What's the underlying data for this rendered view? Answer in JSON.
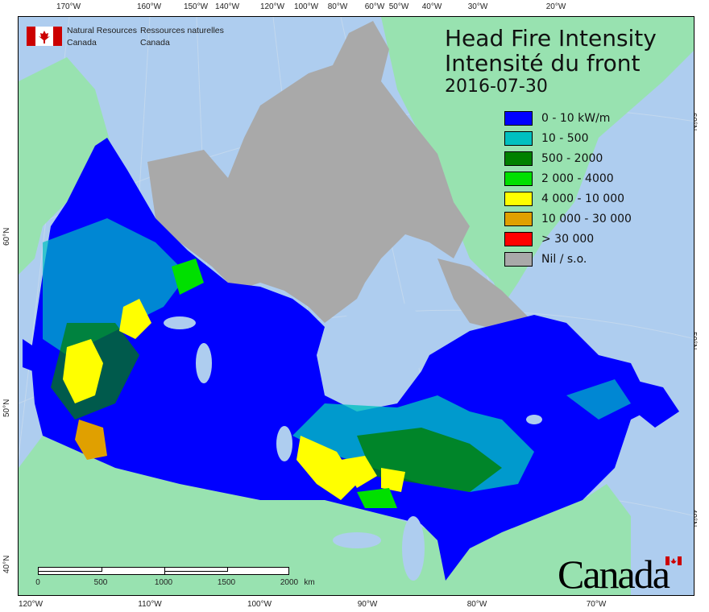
{
  "header": {
    "org_en_line1": "Natural Resources",
    "org_en_line2": "Canada",
    "org_fr_line1": "Ressources naturelles",
    "org_fr_line2": "Canada"
  },
  "title": {
    "line_en": "Head Fire Intensity",
    "line_fr": "Intensité du front",
    "date": "2016-07-30"
  },
  "legend": [
    {
      "label": "0 - 10 kW/m",
      "color": "#0000ff"
    },
    {
      "label": "10 - 500",
      "color": "#00c0c0"
    },
    {
      "label": "500 - 2000",
      "color": "#008000"
    },
    {
      "label": "2 000 - 4000",
      "color": "#00e000"
    },
    {
      "label": "4 000 - 10 000",
      "color": "#ffff00"
    },
    {
      "label": "10 000 - 30 000",
      "color": "#e0a000"
    },
    {
      "label": "> 30 000",
      "color": "#ff0000"
    },
    {
      "label": "Nil / s.o.",
      "color": "#a9a9a9"
    }
  ],
  "graticule": {
    "top": [
      "170°W",
      "160°W",
      "150°W",
      "140°W",
      "120°W",
      "100°W",
      "80°W",
      "60°W",
      "50°W",
      "40°W",
      "30°W",
      "20°W"
    ],
    "bottom": [
      "120°W",
      "110°W",
      "100°W",
      "90°W",
      "80°W",
      "70°W"
    ],
    "left": [
      "60°N",
      "50°N",
      "40°N"
    ],
    "right": [
      "60°N",
      "50°N",
      "40°N"
    ]
  },
  "scale_bar": {
    "labels": [
      "0",
      "500",
      "1000",
      "1500",
      "2000"
    ],
    "unit": "km"
  },
  "wordmark": "Canada",
  "colors": {
    "ocean": "#aecdef",
    "land": "#98e2b0",
    "nodata": "#a9a9a9"
  }
}
